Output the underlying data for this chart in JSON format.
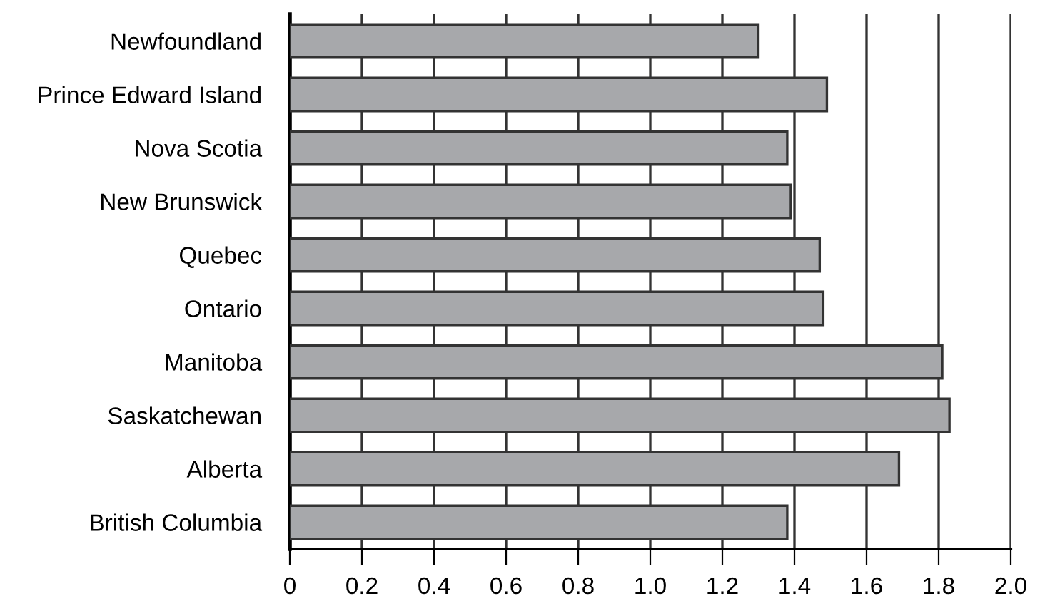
{
  "chart_data": {
    "type": "bar",
    "orientation": "horizontal",
    "categories": [
      "Newfoundland",
      "Prince Edward Island",
      "Nova Scotia",
      "New Brunswick",
      "Quebec",
      "Ontario",
      "Manitoba",
      "Saskatchewan",
      "Alberta",
      "British Columbia"
    ],
    "values": [
      1.3,
      1.49,
      1.38,
      1.39,
      1.47,
      1.48,
      1.81,
      1.83,
      1.69,
      1.38
    ],
    "color": "#a7a8ab",
    "xlim": [
      0,
      2.0
    ],
    "xticks": [
      0,
      {
        "value": 0.2,
        "label": "0.2"
      },
      {
        "value": 0.4,
        "label": "0.4"
      },
      {
        "value": 0.6,
        "label": "0.6"
      },
      {
        "value": 0.8,
        "label": "0.8"
      },
      {
        "value": 1.0,
        "label": "1.0"
      },
      {
        "value": 1.2,
        "label": "1.2"
      },
      {
        "value": 1.4,
        "label": "1.4"
      },
      {
        "value": 1.6,
        "label": "1.6"
      },
      {
        "value": 1.8,
        "label": "1.8"
      },
      {
        "value": 2.0,
        "label": "2.0"
      }
    ],
    "grid": "x"
  }
}
